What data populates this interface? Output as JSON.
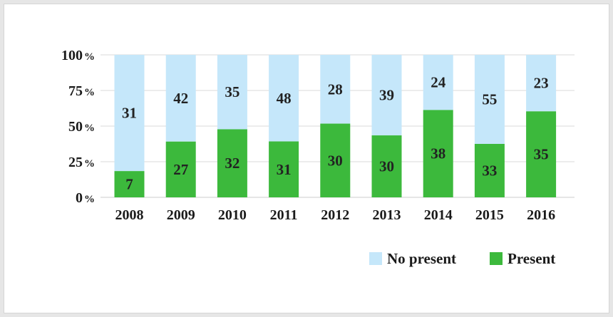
{
  "chart_data": {
    "type": "bar",
    "stacked": true,
    "normalized": true,
    "categories": [
      "2008",
      "2009",
      "2010",
      "2011",
      "2012",
      "2013",
      "2014",
      "2015",
      "2016"
    ],
    "series": [
      {
        "name": "Present",
        "color": "#3cb93c",
        "values": [
          7,
          27,
          32,
          31,
          30,
          30,
          38,
          33,
          35
        ]
      },
      {
        "name": "No present",
        "color": "#c5e7fa",
        "values": [
          31,
          42,
          35,
          48,
          28,
          39,
          24,
          55,
          23
        ]
      }
    ],
    "y_ticks": [
      {
        "num": "0",
        "unit": "%"
      },
      {
        "num": "25",
        "unit": "%"
      },
      {
        "num": "50",
        "unit": "%"
      },
      {
        "num": "75",
        "unit": "%"
      },
      {
        "num": "100",
        "unit": "%"
      }
    ],
    "ylim": [
      0,
      100
    ],
    "grid": true,
    "legend_position": "bottom-right",
    "legend": [
      "No present",
      "Present"
    ]
  }
}
